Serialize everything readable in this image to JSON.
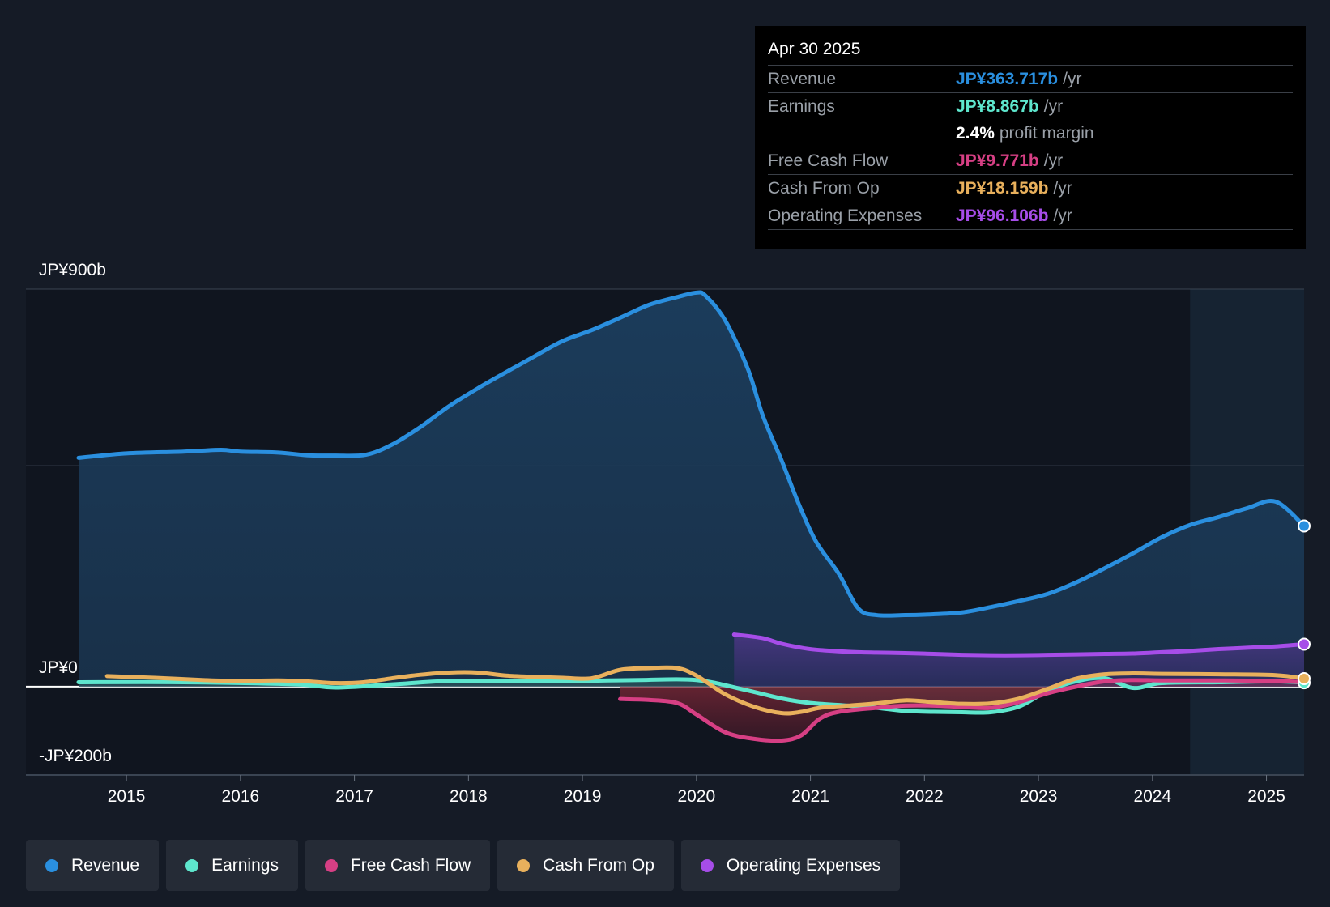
{
  "chart_data": {
    "type": "area",
    "currency": "JP¥",
    "y_axis": {
      "top_label": "JP¥900b",
      "zero_label": "JP¥0",
      "bottom_label": "-JP¥200b",
      "ylim": [
        -200,
        900
      ],
      "gridlines": [
        900,
        500,
        0
      ]
    },
    "x_axis": {
      "ticks": [
        "2015",
        "2016",
        "2017",
        "2018",
        "2019",
        "2020",
        "2021",
        "2022",
        "2023",
        "2024",
        "2025"
      ],
      "xlim": [
        2014.58,
        2025.33
      ]
    },
    "forecast_shade_start": 2024.33,
    "series": [
      {
        "name": "Revenue",
        "color": "#2a8fdf",
        "area": true,
        "end_marker": true,
        "x": [
          2014.58,
          2015.0,
          2015.5,
          2015.83,
          2016.0,
          2016.33,
          2016.58,
          2016.83,
          2017.1,
          2017.33,
          2017.58,
          2017.83,
          2018.08,
          2018.33,
          2018.58,
          2018.83,
          2019.08,
          2019.33,
          2019.58,
          2019.83,
          2020.0,
          2020.08,
          2020.25,
          2020.45,
          2020.58,
          2020.75,
          2020.9,
          2021.05,
          2021.25,
          2021.42,
          2021.58,
          2021.83,
          2022.08,
          2022.33,
          2022.58,
          2022.83,
          2023.08,
          2023.33,
          2023.58,
          2023.83,
          2024.08,
          2024.33,
          2024.58,
          2024.83,
          2025.08,
          2025.33
        ],
        "values": [
          518,
          528,
          532,
          536,
          532,
          530,
          524,
          523,
          525,
          548,
          588,
          635,
          675,
          712,
          748,
          783,
          807,
          835,
          864,
          882,
          892,
          885,
          830,
          720,
          615,
          510,
          412,
          328,
          255,
          177,
          162,
          162,
          164,
          168,
          180,
          194,
          210,
          236,
          268,
          302,
          338,
          366,
          384,
          404,
          419,
          363.717
        ]
      },
      {
        "name": "Earnings",
        "color": "#5ee6cd",
        "area": true,
        "end_marker": true,
        "x": [
          2014.58,
          2015.5,
          2016.5,
          2016.83,
          2017.33,
          2017.83,
          2018.5,
          2019.0,
          2019.5,
          2020.0,
          2020.42,
          2020.75,
          2021.0,
          2021.33,
          2021.58,
          2021.83,
          2022.08,
          2022.33,
          2022.58,
          2022.83,
          2023.08,
          2023.33,
          2023.58,
          2023.83,
          2024.08,
          2024.58,
          2025.08,
          2025.33
        ],
        "values": [
          10,
          10,
          5,
          -2,
          5,
          13,
          12,
          13,
          15,
          15,
          -7,
          -27,
          -37,
          -43,
          -48,
          -55,
          -57,
          -58,
          -58,
          -45,
          -10,
          12,
          19,
          -3,
          8,
          10,
          12,
          8.867
        ]
      },
      {
        "name": "Free Cash Flow",
        "color": "#d63f84",
        "area": true,
        "end_marker": false,
        "x": [
          2019.33,
          2019.58,
          2019.83,
          2020.0,
          2020.25,
          2020.5,
          2020.75,
          2020.92,
          2021.08,
          2021.25,
          2021.58,
          2021.83,
          2022.08,
          2022.33,
          2022.58,
          2022.83,
          2023.08,
          2023.33,
          2023.58,
          2023.83,
          2024.08,
          2024.58,
          2025.08,
          2025.33
        ],
        "values": [
          -28,
          -30,
          -37,
          -63,
          -103,
          -118,
          -122,
          -110,
          -73,
          -57,
          -48,
          -43,
          -43,
          -46,
          -48,
          -35,
          -15,
          0,
          12,
          15,
          14,
          14,
          13,
          9.771
        ]
      },
      {
        "name": "Cash From Op",
        "color": "#e8b05c",
        "area": false,
        "end_marker": true,
        "x": [
          2014.83,
          2015.25,
          2015.75,
          2016.0,
          2016.33,
          2016.58,
          2016.83,
          2017.08,
          2017.33,
          2017.58,
          2017.83,
          2018.08,
          2018.33,
          2018.58,
          2018.83,
          2019.08,
          2019.33,
          2019.58,
          2019.83,
          2020.0,
          2020.25,
          2020.5,
          2020.75,
          2020.92,
          2021.08,
          2021.33,
          2021.58,
          2021.83,
          2022.08,
          2022.33,
          2022.58,
          2022.83,
          2023.08,
          2023.33,
          2023.58,
          2023.83,
          2024.08,
          2024.58,
          2025.08,
          2025.33
        ],
        "values": [
          24,
          20,
          14,
          13,
          14,
          12,
          8,
          10,
          19,
          27,
          32,
          32,
          25,
          22,
          20,
          19,
          38,
          42,
          42,
          25,
          -17,
          -45,
          -60,
          -57,
          -48,
          -43,
          -38,
          -31,
          -35,
          -39,
          -38,
          -27,
          -5,
          18,
          28,
          30,
          29,
          28,
          26,
          18.159
        ]
      },
      {
        "name": "Operating Expenses",
        "color": "#a64de8",
        "area": true,
        "end_marker": true,
        "x": [
          2020.33,
          2020.58,
          2020.75,
          2021.0,
          2021.33,
          2021.58,
          2021.83,
          2022.08,
          2022.33,
          2022.58,
          2022.83,
          2023.08,
          2023.33,
          2023.58,
          2023.83,
          2024.08,
          2024.33,
          2024.58,
          2024.83,
          2025.08,
          2025.33
        ],
        "values": [
          118,
          110,
          97,
          85,
          79,
          77,
          76,
          74,
          72,
          71,
          71,
          72,
          73,
          74,
          75,
          78,
          81,
          85,
          88,
          91,
          96.106
        ]
      }
    ]
  },
  "tooltip": {
    "date": "Apr 30 2025",
    "rows": [
      {
        "label": "Revenue",
        "value": "JP¥363.717b",
        "unit": "/yr",
        "color": "#2a8fdf"
      },
      {
        "label": "Earnings",
        "value": "JP¥8.867b",
        "unit": "/yr",
        "color": "#5ee6cd"
      },
      {
        "label": "",
        "value": "2.4%",
        "unit": "profit margin",
        "color": "#ffffff"
      },
      {
        "label": "Free Cash Flow",
        "value": "JP¥9.771b",
        "unit": "/yr",
        "color": "#d63f84"
      },
      {
        "label": "Cash From Op",
        "value": "JP¥18.159b",
        "unit": "/yr",
        "color": "#e8b05c"
      },
      {
        "label": "Operating Expenses",
        "value": "JP¥96.106b",
        "unit": "/yr",
        "color": "#a64de8"
      }
    ]
  },
  "legend": [
    {
      "label": "Revenue",
      "color": "#2a8fdf"
    },
    {
      "label": "Earnings",
      "color": "#5ee6cd"
    },
    {
      "label": "Free Cash Flow",
      "color": "#d63f84"
    },
    {
      "label": "Cash From Op",
      "color": "#e8b05c"
    },
    {
      "label": "Operating Expenses",
      "color": "#a64de8"
    }
  ]
}
